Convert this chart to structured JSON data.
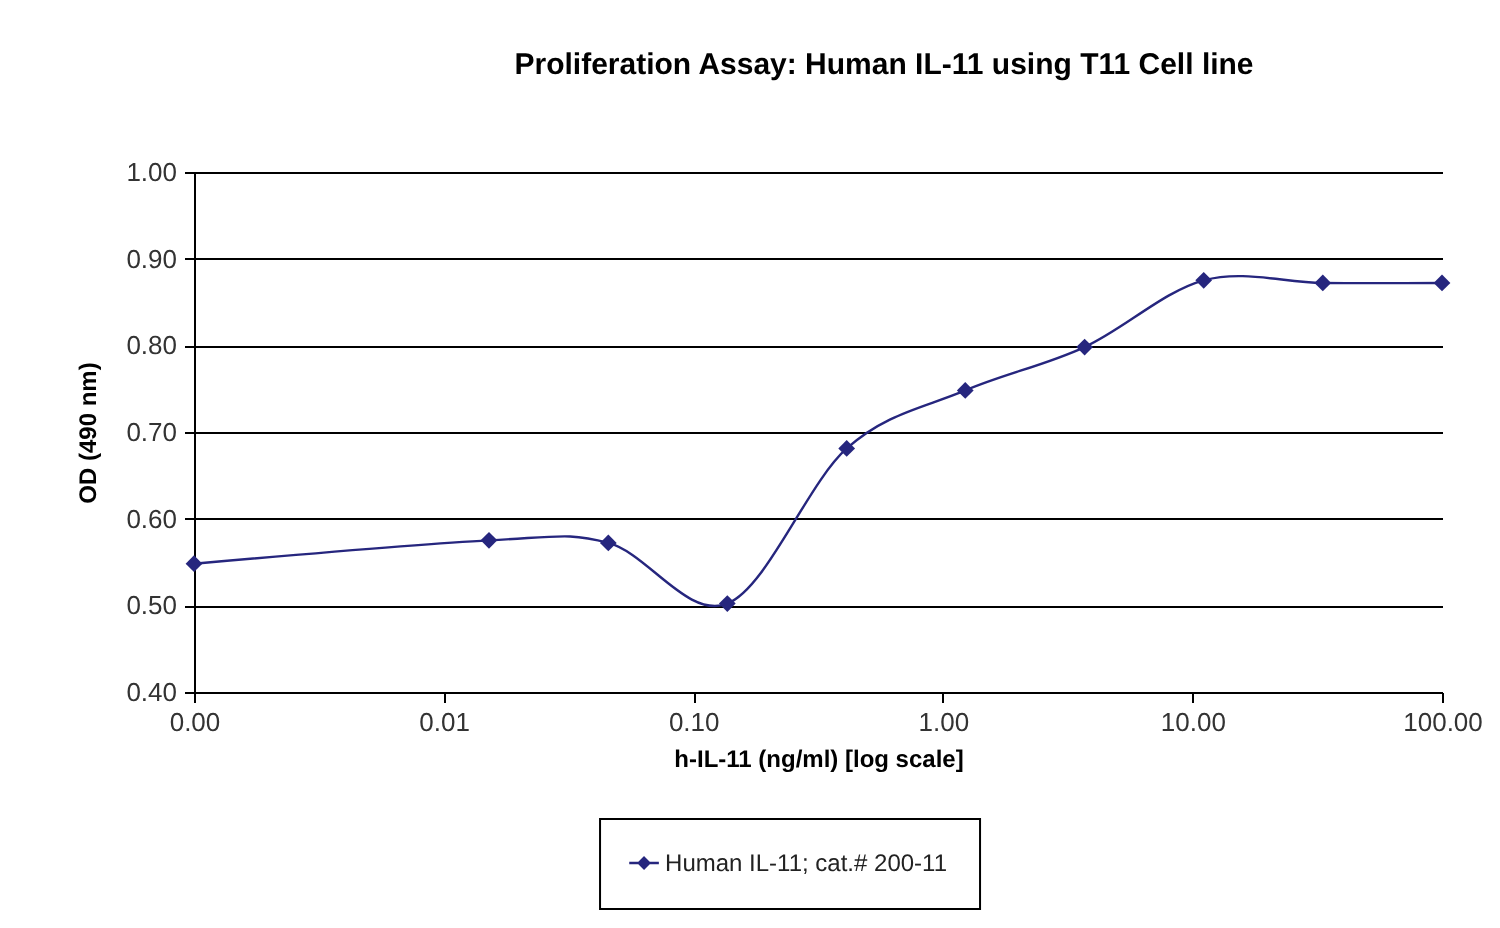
{
  "chart_data": {
    "type": "line",
    "title": "Proliferation Assay: Human IL-11 using T11 Cell line",
    "xlabel": "h-IL-11 (ng/ml) [log scale]",
    "ylabel": "OD (490 nm)",
    "x": [
      0.001,
      0.0152,
      0.0457,
      0.137,
      0.412,
      1.23,
      3.7,
      11.1,
      33.3,
      100
    ],
    "series": [
      {
        "name": "Human IL-11; cat.# 200-11",
        "color": "#26267e",
        "values": [
          0.548,
          0.575,
          0.572,
          0.502,
          0.681,
          0.748,
          0.798,
          0.875,
          0.872,
          0.872
        ]
      }
    ],
    "log": "x",
    "xlim": [
      0.001,
      100
    ],
    "xticks": [
      {
        "value": 0.001,
        "label": "0.00"
      },
      {
        "value": 0.01,
        "label": "0.01"
      },
      {
        "value": 0.1,
        "label": "0.10"
      },
      {
        "value": 1,
        "label": "1.00"
      },
      {
        "value": 10,
        "label": "10.00"
      },
      {
        "value": 100,
        "label": "100.00"
      }
    ],
    "ylim": [
      0.4,
      1.0
    ],
    "yticks": [
      {
        "value": 0.4,
        "label": "0.40"
      },
      {
        "value": 0.5,
        "label": "0.50"
      },
      {
        "value": 0.6,
        "label": "0.60"
      },
      {
        "value": 0.7,
        "label": "0.70"
      },
      {
        "value": 0.8,
        "label": "0.80"
      },
      {
        "value": 0.9,
        "label": "0.90"
      },
      {
        "value": 1.0,
        "label": "1.00"
      }
    ],
    "grid": "y",
    "legend": "bottom",
    "marker": "diamond",
    "line_style": "solid"
  }
}
